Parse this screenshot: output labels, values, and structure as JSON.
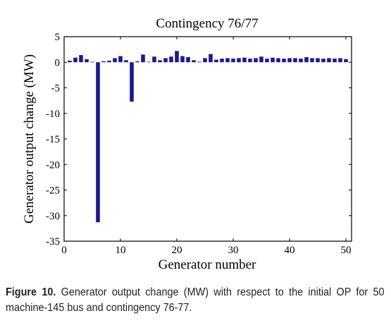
{
  "chart_data": {
    "type": "bar",
    "title": "Contingency 76/77",
    "xlabel": "Generator number",
    "ylabel": "Generator output change (MW)",
    "xlim": [
      0,
      51
    ],
    "ylim": [
      -35,
      5
    ],
    "xticks": [
      0,
      10,
      20,
      30,
      40,
      50
    ],
    "yticks": [
      5,
      0,
      -5,
      -10,
      -15,
      -20,
      -25,
      -30,
      -35
    ],
    "grid": false,
    "bar_color": "#1a1a8c",
    "x": [
      1,
      2,
      3,
      4,
      5,
      6,
      7,
      8,
      9,
      10,
      11,
      12,
      13,
      14,
      15,
      16,
      17,
      18,
      19,
      20,
      21,
      22,
      23,
      24,
      25,
      26,
      27,
      28,
      29,
      30,
      31,
      32,
      33,
      34,
      35,
      36,
      37,
      38,
      39,
      40,
      41,
      42,
      43,
      44,
      45,
      46,
      47,
      48,
      49,
      50
    ],
    "values": [
      0.3,
      0.9,
      1.4,
      0.6,
      0.1,
      -31.3,
      0.2,
      0.3,
      0.8,
      1.2,
      0.4,
      -7.7,
      0.2,
      1.5,
      0.1,
      1.1,
      0.4,
      0.8,
      1.1,
      2.2,
      1.2,
      1.0,
      0.4,
      0.1,
      0.8,
      1.6,
      0.5,
      0.7,
      0.8,
      0.7,
      0.8,
      0.9,
      0.7,
      0.8,
      1.1,
      0.7,
      0.9,
      0.8,
      0.7,
      0.8,
      0.8,
      0.7,
      1.0,
      0.8,
      0.8,
      0.7,
      0.8,
      0.7,
      0.8,
      0.6
    ]
  },
  "caption": {
    "label": "Figure 10.",
    "text": "Generator output change (MW) with respect to the initial OP for 50 machine-145 bus and contingency 76-77."
  }
}
